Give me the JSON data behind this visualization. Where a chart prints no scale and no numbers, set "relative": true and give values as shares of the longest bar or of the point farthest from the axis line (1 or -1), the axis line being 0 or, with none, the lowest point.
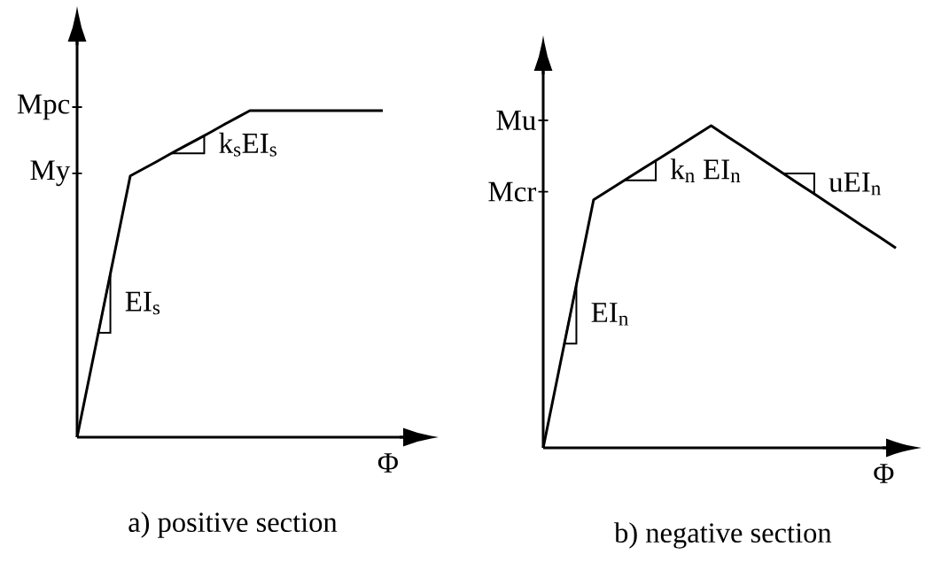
{
  "chart_data": [
    {
      "type": "line",
      "title": "a) positive section",
      "xlabel": "Φ",
      "relative": true,
      "color": "#000000",
      "categories": [
        null,
        null,
        null,
        null,
        null,
        null,
        null,
        null,
        null,
        null,
        null,
        null,
        null,
        null,
        null,
        null,
        null,
        null,
        null,
        null,
        null,
        null,
        null,
        null
      ],
      "values": [
        0,
        0.2,
        0.4,
        0.6,
        0.8,
        0.822,
        0.844,
        0.867,
        0.889,
        0.911,
        0.933,
        0.956,
        0.978,
        1,
        1,
        1,
        1,
        1,
        1,
        1,
        1,
        1,
        1,
        1
      ],
      "annotations": [
        "My",
        "Mpc",
        "EI$_{s}$",
        "k$_{s}$EI$_{s}$"
      ]
    },
    {
      "type": "line",
      "title": "b) negative section",
      "xlabel": "Φ",
      "relative": true,
      "color": "#000000",
      "categories": [
        null,
        null,
        null,
        null,
        null,
        null,
        null,
        null,
        null,
        null,
        null,
        null,
        null,
        null,
        null,
        null,
        null,
        null,
        null,
        null,
        null,
        null
      ],
      "values": [
        0,
        0.257,
        0.513,
        0.77,
        0.803,
        0.836,
        0.869,
        0.901,
        0.934,
        0.967,
        1,
        0.965,
        0.931,
        0.896,
        0.862,
        0.827,
        0.793,
        0.758,
        0.724,
        0.689,
        0.655,
        0.62
      ],
      "annotations": [
        "Mcr",
        "Mu",
        "EI$_{n}$",
        "k$_{n}$ EI$_{n}$",
        "uEI$_{n}$"
      ]
    }
  ]
}
